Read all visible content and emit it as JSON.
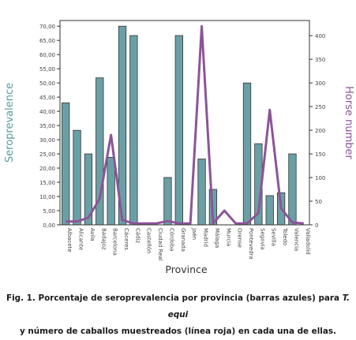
{
  "chart_data": {
    "type": "bar",
    "xlabel": "Province",
    "ylabel_left": "Seroprevalence",
    "ylabel_right": "Horse number",
    "ylim_left": [
      0,
      72
    ],
    "ylim_right": [
      0,
      432
    ],
    "left_ticks": [
      "0,00",
      "5,00",
      "10,00",
      "15,00",
      "20,00",
      "25,00",
      "30,00",
      "35,00",
      "40,00",
      "45,00",
      "50,00",
      "55,00",
      "60,00",
      "65,00",
      "70,00"
    ],
    "right_ticks": [
      "0",
      "50",
      "100",
      "150",
      "200",
      "250",
      "300",
      "350",
      "400"
    ],
    "categories": [
      "Albacete",
      "Alicante",
      "Avila",
      "Badajoz",
      "Barcelona",
      "Cáceres",
      "Cádiz",
      "Castellón",
      "Ciudad Real",
      "Córdoba",
      "Granada",
      "Jaén",
      "Madrid",
      "Málaga",
      "Murcia",
      "Orense",
      "Pontevedra",
      "Segovia",
      "Sevilla",
      "Toledo",
      "Valencia",
      "Valladolid"
    ],
    "series": [
      {
        "name": "Seroprevalence",
        "axis": "left",
        "type": "bar",
        "color": "#6aa0a5",
        "values": [
          43,
          33.3,
          25,
          51.8,
          23.8,
          70,
          66.7,
          0,
          0,
          16.7,
          66.7,
          0,
          23.2,
          12.5,
          0,
          0,
          50,
          28.6,
          10.3,
          11.3,
          25,
          0
        ]
      },
      {
        "name": "Horse number",
        "axis": "right",
        "type": "line",
        "color": "#8d5499",
        "values": [
          7,
          7,
          15,
          55,
          190,
          10,
          3,
          3,
          3,
          8,
          3,
          3,
          420,
          3,
          30,
          3,
          3,
          25,
          243,
          35,
          5,
          3
        ]
      }
    ]
  },
  "caption": {
    "line1_prefix": "Fig. 1. Porcentaje de seroprevalencia por provincia (barras azules) para ",
    "line1_italic": "T. equi",
    "line2": "y número de caballos muestreados (línea roja) en cada una de ellas."
  }
}
